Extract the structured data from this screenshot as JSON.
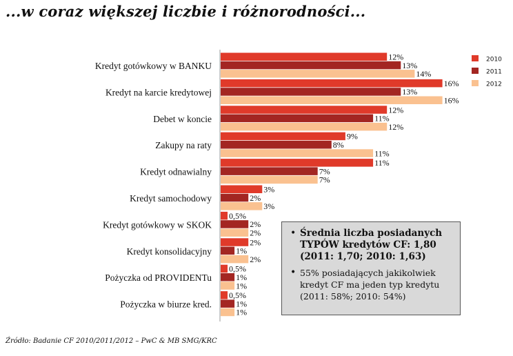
{
  "page": {
    "title": "...w coraz większej liczbie i różnorodności...",
    "source": "Źródło: Badanie CF 2010/2011/2012 – PwC & MB SMG/KRC"
  },
  "info_box": {
    "bullet1": "Średnia liczba posiadanych TYPÓW kredytów CF: 1,80 (2011: 1,70; 2010: 1,63)",
    "bullet2": "55% posiadających jakikolwiek kredyt CF ma jeden typ kredytu (2011: 58%; 2010: 54%)"
  },
  "chart_data": {
    "type": "bar",
    "orientation": "horizontal",
    "categories": [
      "Kredyt gotówkowy w BANKU",
      "Kredyt na karcie kredytowej",
      "Debet w koncie",
      "Zakupy na raty",
      "Kredyt odnawialny",
      "Kredyt samochodowy",
      "Kredyt gotówkowy w SKOK",
      "Kredyt konsolidacyjny",
      "Pożyczka od PROVIDENTu",
      "Pożyczka w biurze kred."
    ],
    "series": [
      {
        "name": "2010",
        "color": "#e03a2a",
        "values": [
          12,
          16,
          12,
          9,
          11,
          3,
          0.5,
          2,
          0.5,
          0.5
        ],
        "labels": [
          "12%",
          "16%",
          "12%",
          "9%",
          "11%",
          "3%",
          "0,5%",
          "2%",
          "0,5%",
          "0,5%"
        ]
      },
      {
        "name": "2011",
        "color": "#a32622",
        "values": [
          13,
          13,
          11,
          8,
          7,
          2,
          2,
          1,
          1,
          1
        ],
        "labels": [
          "13%",
          "13%",
          "11%",
          "8%",
          "7%",
          "2%",
          "2%",
          "1%",
          "1%",
          "1%"
        ]
      },
      {
        "name": "2012",
        "color": "#fac190",
        "values": [
          14,
          16,
          12,
          11,
          7,
          3,
          2,
          2,
          1,
          1
        ],
        "labels": [
          "14%",
          "16%",
          "12%",
          "11%",
          "7%",
          "3%",
          "2%",
          "2%",
          "1%",
          "1%"
        ]
      }
    ],
    "legend": "right",
    "axis_line_color": "#999999"
  }
}
